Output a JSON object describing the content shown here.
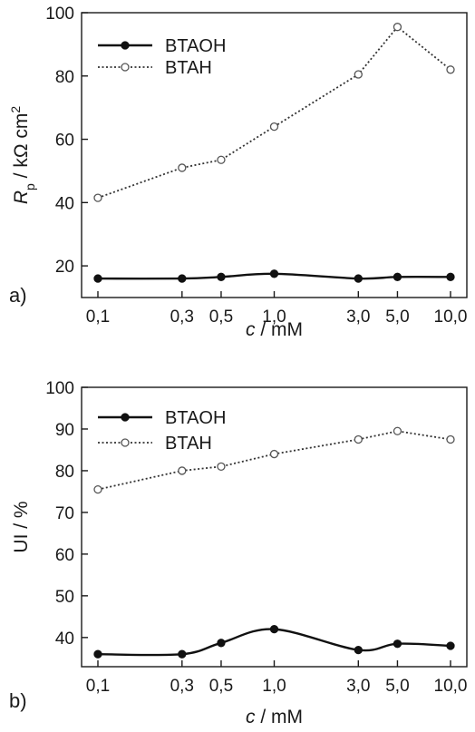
{
  "chart_data": [
    {
      "type": "line",
      "panel_label": "a)",
      "x_scale": "log",
      "categories": [
        "0,1",
        "0,3",
        "0,5",
        "1,0",
        "3,0",
        "5,0",
        "10,0"
      ],
      "x": [
        0.1,
        0.3,
        0.5,
        1.0,
        3.0,
        5.0,
        10.0
      ],
      "xlabel_italic": "c",
      "xlabel_rest": " / mM",
      "ylabel_main": "R",
      "ylabel_sub": "p",
      "ylabel_rest": " / kΩ cm",
      "ylabel_sup": "2",
      "ylim": [
        10,
        100
      ],
      "yticks": [
        20,
        40,
        60,
        80,
        100
      ],
      "legend_position": "top-left",
      "series": [
        {
          "name": "BTAOH",
          "style": "solid",
          "marker": "filled-circle",
          "values": [
            16,
            16,
            16.5,
            17.5,
            16,
            16.5,
            16.5
          ]
        },
        {
          "name": "BTAH",
          "style": "dotted",
          "marker": "open-circle",
          "values": [
            41.5,
            51,
            53.5,
            64,
            80.5,
            95.5,
            82
          ]
        }
      ]
    },
    {
      "type": "line",
      "panel_label": "b)",
      "x_scale": "log",
      "categories": [
        "0,1",
        "0,3",
        "0,5",
        "1,0",
        "3,0",
        "5,0",
        "10,0"
      ],
      "x": [
        0.1,
        0.3,
        0.5,
        1.0,
        3.0,
        5.0,
        10.0
      ],
      "xlabel_italic": "c",
      "xlabel_rest": " / mM",
      "ylabel": "UI / %",
      "ylim": [
        33,
        100
      ],
      "yticks": [
        40,
        50,
        60,
        70,
        80,
        90,
        100
      ],
      "legend_position": "top-left",
      "series": [
        {
          "name": "BTAOH",
          "style": "solid",
          "marker": "filled-circle",
          "values": [
            36,
            36,
            38.7,
            42,
            37,
            38.5,
            38
          ]
        },
        {
          "name": "BTAH",
          "style": "dotted",
          "marker": "open-circle",
          "values": [
            75.5,
            80,
            81,
            84,
            87.5,
            89.5,
            87.5
          ]
        }
      ]
    }
  ]
}
